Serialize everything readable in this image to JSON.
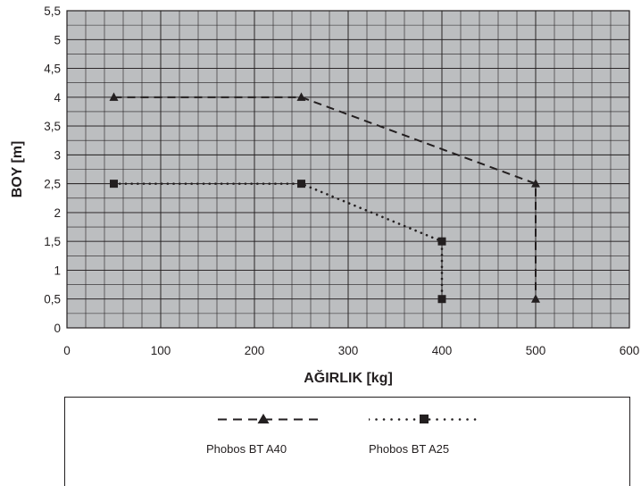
{
  "chart_data": {
    "type": "line",
    "xlabel": "AĞIRLIK [kg]",
    "ylabel": "BOY  [m]",
    "xlim": [
      0,
      600
    ],
    "ylim": [
      0,
      5.5
    ],
    "x_ticks": [
      "0",
      "100",
      "200",
      "300",
      "400",
      "500",
      "600"
    ],
    "y_ticks": [
      "0",
      "0,5",
      "1",
      "1,5",
      "2",
      "2,5",
      "3",
      "3,5",
      "4",
      "4,5",
      "5",
      "5,5"
    ],
    "grid": true,
    "plot_background": "#bcbec0",
    "legend_position": "bottom",
    "series": [
      {
        "name": "Phobos BT A40",
        "marker": "triangle",
        "line": "dashed",
        "color": "#231f20",
        "points": [
          [
            50,
            4
          ],
          [
            250,
            4
          ],
          [
            500,
            2.5
          ],
          [
            500,
            0.5
          ]
        ]
      },
      {
        "name": "Phobos BT A25",
        "marker": "square",
        "line": "dotted",
        "color": "#231f20",
        "points": [
          [
            50,
            2.5
          ],
          [
            250,
            2.5
          ],
          [
            400,
            1.5
          ],
          [
            400,
            0.5
          ]
        ]
      }
    ]
  }
}
